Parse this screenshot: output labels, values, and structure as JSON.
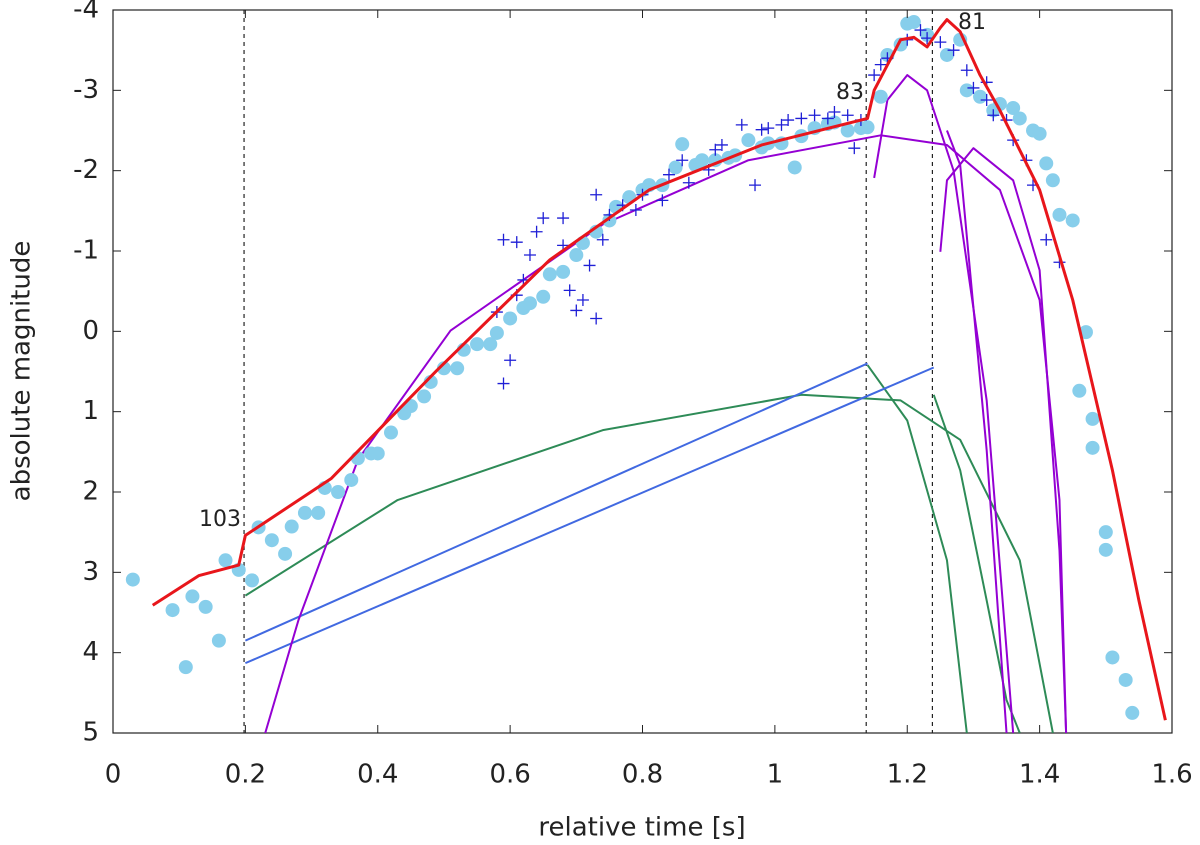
{
  "chart_data": {
    "type": "scatter",
    "xlabel": "relative time [s]",
    "ylabel": "absolute magnitude",
    "xlim": [
      0,
      1.6
    ],
    "ylim": [
      5,
      -4
    ],
    "xticks": [
      0,
      0.2,
      0.4,
      0.6,
      0.8,
      1,
      1.2,
      1.4,
      1.6
    ],
    "yticks": [
      -4,
      -3,
      -2,
      -1,
      0,
      1,
      2,
      3,
      4,
      5
    ],
    "vlines": [
      0.198,
      1.138,
      1.238
    ],
    "annotations": [
      "103",
      "83",
      "81"
    ],
    "series": [
      {
        "kind": "line",
        "color": "#2e8b57",
        "x": [
          0.2,
          0.43,
          0.74,
          1.04,
          1.19,
          1.28,
          1.37,
          1.42
        ],
        "values": [
          3.29,
          2.1,
          1.23,
          0.79,
          0.86,
          1.35,
          2.85,
          5.0
        ]
      },
      {
        "kind": "line",
        "color": "#2e8b57",
        "x": [
          1.14,
          1.2,
          1.26,
          1.29
        ],
        "values": [
          0.42,
          1.11,
          2.85,
          5.0
        ]
      },
      {
        "kind": "line",
        "color": "#2e8b57",
        "x": [
          1.24,
          1.28,
          1.32,
          1.35,
          1.37
        ],
        "values": [
          0.79,
          1.73,
          3.35,
          4.59,
          5.0
        ]
      },
      {
        "kind": "line",
        "color": "#4169e1",
        "x": [
          0.2,
          1.14
        ],
        "values": [
          3.85,
          0.4
        ]
      },
      {
        "kind": "line",
        "color": "#4169e1",
        "x": [
          0.2,
          1.24
        ],
        "values": [
          4.13,
          0.45
        ]
      },
      {
        "kind": "line",
        "color": "#9400d3",
        "x": [
          0.23,
          0.28,
          0.37,
          0.51,
          0.74,
          0.96,
          1.16,
          1.26,
          1.34,
          1.4,
          1.43,
          1.44
        ],
        "values": [
          5.0,
          3.6,
          1.6,
          -0.01,
          -1.33,
          -2.13,
          -2.44,
          -2.32,
          -1.76,
          -0.39,
          2.1,
          5.0
        ]
      },
      {
        "kind": "line",
        "color": "#9400d3",
        "x": [
          1.15,
          1.17,
          1.2,
          1.23,
          1.27,
          1.32,
          1.36
        ],
        "values": [
          -1.91,
          -2.88,
          -3.19,
          -3.0,
          -2.0,
          0.86,
          5.0
        ]
      },
      {
        "kind": "line",
        "color": "#9400d3",
        "x": [
          1.26,
          1.28,
          1.32,
          1.35
        ],
        "values": [
          -2.5,
          -2.07,
          1.48,
          5.0
        ]
      },
      {
        "kind": "line",
        "color": "#9400d3",
        "x": [
          1.25,
          1.26,
          1.3,
          1.36,
          1.4,
          1.43,
          1.44
        ],
        "values": [
          -0.99,
          -1.88,
          -2.28,
          -1.88,
          -0.76,
          2.73,
          5.0
        ]
      },
      {
        "kind": "points",
        "marker": "circle",
        "color": "#87ceeb",
        "x": [
          0.03,
          0.09,
          0.11,
          0.12,
          0.14,
          0.16,
          0.17,
          0.19,
          0.21,
          0.22,
          0.24,
          0.26,
          0.27,
          0.29,
          0.31,
          0.32,
          0.34,
          0.36,
          0.37,
          0.39,
          0.4,
          0.42,
          0.44,
          0.45,
          0.47,
          0.48,
          0.5,
          0.52,
          0.53,
          0.55,
          0.57,
          0.58,
          0.6,
          0.62,
          0.63,
          0.65,
          0.66,
          0.68,
          0.7,
          0.71,
          0.73,
          0.75,
          0.76,
          0.78,
          0.8,
          0.81,
          0.83,
          0.85,
          0.86,
          0.88,
          0.89,
          0.91,
          0.93,
          0.94,
          0.96,
          0.98,
          0.99,
          1.01,
          1.03,
          1.04,
          1.06,
          1.08,
          1.09,
          1.11,
          1.13,
          1.14,
          1.16,
          1.17,
          1.19,
          1.2,
          1.21,
          1.23,
          1.26,
          1.28,
          1.29,
          1.31,
          1.33,
          1.34,
          1.36,
          1.37,
          1.39,
          1.4,
          1.41,
          1.42,
          1.43,
          1.45,
          1.46,
          1.47,
          1.48,
          1.48,
          1.5,
          1.5,
          1.51,
          1.53,
          1.54
        ],
        "values": [
          3.09,
          3.47,
          4.18,
          3.3,
          3.43,
          3.85,
          2.85,
          2.97,
          3.1,
          2.44,
          2.6,
          2.77,
          2.43,
          2.26,
          2.26,
          1.95,
          2.0,
          1.85,
          1.58,
          1.52,
          1.52,
          1.26,
          1.02,
          0.93,
          0.81,
          0.63,
          0.46,
          0.46,
          0.23,
          0.16,
          0.16,
          0.02,
          -0.16,
          -0.29,
          -0.35,
          -0.43,
          -0.71,
          -0.74,
          -0.95,
          -1.1,
          -1.24,
          -1.38,
          -1.55,
          -1.67,
          -1.76,
          -1.82,
          -1.82,
          -2.04,
          -2.33,
          -2.07,
          -2.13,
          -2.13,
          -2.16,
          -2.19,
          -2.38,
          -2.29,
          -2.34,
          -2.34,
          -2.04,
          -2.43,
          -2.53,
          -2.58,
          -2.6,
          -2.5,
          -2.53,
          -2.54,
          -2.92,
          -3.44,
          -3.57,
          -3.83,
          -3.85,
          -3.69,
          -3.44,
          -3.63,
          -3.0,
          -2.92,
          -2.75,
          -2.83,
          -2.78,
          -2.65,
          -2.5,
          -2.46,
          -2.09,
          -1.88,
          -1.45,
          -1.38,
          0.74,
          0.01,
          1.09,
          1.45,
          2.5,
          2.72,
          4.06,
          4.34,
          4.75
        ]
      },
      {
        "kind": "points",
        "marker": "plus",
        "color": "#1f1fd6",
        "x": [
          0.59,
          0.6,
          0.58,
          0.61,
          0.62,
          0.59,
          0.61,
          0.63,
          0.64,
          0.65,
          0.68,
          0.68,
          0.69,
          0.7,
          0.71,
          0.73,
          0.72,
          0.74,
          0.75,
          0.73,
          0.77,
          0.79,
          0.8,
          0.83,
          0.84,
          0.86,
          0.87,
          0.9,
          0.91,
          0.92,
          0.95,
          0.97,
          0.98,
          0.99,
          1.01,
          1.02,
          1.04,
          1.06,
          1.08,
          1.09,
          1.11,
          1.12,
          1.13,
          1.15,
          1.16,
          1.17,
          1.2,
          1.22,
          1.23,
          1.25,
          1.27,
          1.29,
          1.3,
          1.32,
          1.33,
          1.35,
          1.36,
          1.38,
          1.39,
          1.41,
          1.43,
          1.32
        ],
        "values": [
          0.65,
          0.36,
          -0.24,
          -0.45,
          -0.64,
          -1.14,
          -1.11,
          -0.95,
          -1.24,
          -1.41,
          -1.41,
          -1.07,
          -0.51,
          -0.26,
          -0.39,
          -0.16,
          -0.82,
          -1.14,
          -1.45,
          -1.7,
          -1.57,
          -1.51,
          -1.7,
          -1.63,
          -1.95,
          -2.13,
          -1.85,
          -2.01,
          -2.26,
          -2.32,
          -2.57,
          -1.82,
          -2.51,
          -2.53,
          -2.57,
          -2.63,
          -2.65,
          -2.69,
          -2.65,
          -2.73,
          -2.69,
          -2.28,
          -2.63,
          -3.19,
          -3.32,
          -3.4,
          -3.63,
          -3.75,
          -3.65,
          -3.6,
          -3.5,
          -3.25,
          -3.03,
          -2.88,
          -2.69,
          -2.63,
          -2.38,
          -2.13,
          -1.82,
          -1.14,
          -0.86,
          -3.1
        ]
      },
      {
        "kind": "line",
        "color": "#e8161b",
        "width": 3,
        "x": [
          0.06,
          0.13,
          0.19,
          0.2,
          0.33,
          0.49,
          0.66,
          0.81,
          0.98,
          1.13,
          1.14,
          1.15,
          1.19,
          1.21,
          1.23,
          1.25,
          1.26,
          1.28,
          1.31,
          1.34,
          1.4,
          1.45,
          1.51,
          1.55,
          1.59
        ],
        "values": [
          3.41,
          3.04,
          2.91,
          2.54,
          1.83,
          0.48,
          -0.89,
          -1.76,
          -2.32,
          -2.63,
          -2.65,
          -3.0,
          -3.63,
          -3.66,
          -3.54,
          -3.78,
          -3.88,
          -3.73,
          -3.19,
          -2.75,
          -1.76,
          -0.39,
          1.73,
          3.35,
          4.84
        ]
      }
    ]
  }
}
